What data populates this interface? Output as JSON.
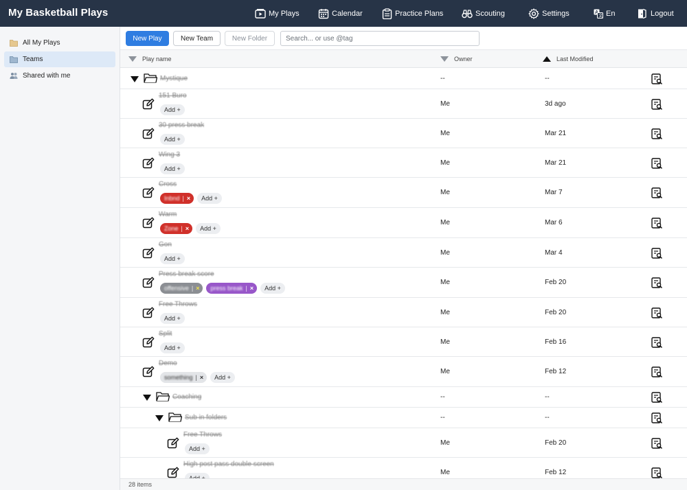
{
  "app": {
    "title": "My Basketball Plays"
  },
  "nav": [
    {
      "id": "my-plays",
      "label": "My Plays",
      "icon": "play-screen-icon"
    },
    {
      "id": "calendar",
      "label": "Calendar",
      "icon": "calendar-icon"
    },
    {
      "id": "practice-plans",
      "label": "Practice Plans",
      "icon": "clipboard-icon"
    },
    {
      "id": "scouting",
      "label": "Scouting",
      "icon": "binoculars-icon"
    },
    {
      "id": "settings",
      "label": "Settings",
      "icon": "gear-icon"
    },
    {
      "id": "language",
      "label": "En",
      "icon": "translate-icon"
    },
    {
      "id": "logout",
      "label": "Logout",
      "icon": "logout-icon"
    }
  ],
  "sidebar": {
    "items": [
      {
        "label": "All My Plays",
        "icon": "folder-icon",
        "active": false
      },
      {
        "label": "Teams",
        "icon": "folder-icon",
        "active": true
      },
      {
        "label": "Shared with me",
        "icon": "people-icon",
        "active": false
      }
    ]
  },
  "toolbar": {
    "new_play": "New Play",
    "new_team": "New Team",
    "new_folder": "New Folder",
    "search_placeholder": "Search... or use @tag"
  },
  "table": {
    "columns": {
      "name": "Play name",
      "owner": "Owner",
      "modified": "Last Modified"
    },
    "rows": [
      {
        "type": "folder",
        "level": 0,
        "name": "Mystique",
        "owner": "--",
        "modified": "--"
      },
      {
        "type": "play",
        "level": 0,
        "name": "151 Buro",
        "owner": "Me",
        "modified": "3d ago",
        "tags": [],
        "add_label": "Add +"
      },
      {
        "type": "play",
        "level": 0,
        "name": "30 press break",
        "owner": "Me",
        "modified": "Mar 21",
        "tags": [],
        "add_label": "Add +"
      },
      {
        "type": "play",
        "level": 0,
        "name": "Wing 3",
        "owner": "Me",
        "modified": "Mar 21",
        "tags": [],
        "add_label": "Add +"
      },
      {
        "type": "play",
        "level": 0,
        "name": "Cross",
        "owner": "Me",
        "modified": "Mar 7",
        "tags": [
          {
            "label": "Inbnd",
            "color": "#d0302a",
            "x": "×"
          }
        ],
        "add_label": "Add +"
      },
      {
        "type": "play",
        "level": 0,
        "name": "Warm",
        "owner": "Me",
        "modified": "Mar 6",
        "tags": [
          {
            "label": "Zone",
            "color": "#d0302a",
            "x": "×"
          }
        ],
        "add_label": "Add +"
      },
      {
        "type": "play",
        "level": 0,
        "name": "Gon",
        "owner": "Me",
        "modified": "Mar 4",
        "tags": [],
        "add_label": "Add +"
      },
      {
        "type": "play",
        "level": 0,
        "name": "Press break score",
        "owner": "Me",
        "modified": "Feb 20",
        "tags": [
          {
            "label": "offensive",
            "color": "#8b8e93",
            "x": "×"
          },
          {
            "label": "press break",
            "color": "#9857c9",
            "x": "×"
          }
        ],
        "add_label": "Add +"
      },
      {
        "type": "play",
        "level": 0,
        "name": "Free Throws",
        "owner": "Me",
        "modified": "Feb 20",
        "tags": [],
        "add_label": "Add +"
      },
      {
        "type": "play",
        "level": 0,
        "name": "Split",
        "owner": "Me",
        "modified": "Feb 16",
        "tags": [],
        "add_label": "Add +"
      },
      {
        "type": "play",
        "level": 0,
        "name": "Demo",
        "owner": "Me",
        "modified": "Feb 12",
        "tags": [
          {
            "label": "something",
            "color": "#e3e5e8",
            "x": "×"
          }
        ],
        "add_label": "Add +"
      },
      {
        "type": "folder",
        "level": 1,
        "name": "Coaching",
        "owner": "--",
        "modified": "--"
      },
      {
        "type": "folder",
        "level": 2,
        "name": "Sub in folders",
        "owner": "--",
        "modified": "--"
      },
      {
        "type": "play",
        "level": 2,
        "name": "Free Throws",
        "owner": "Me",
        "modified": "Feb 20",
        "tags": [],
        "add_label": "Add +"
      },
      {
        "type": "play",
        "level": 2,
        "name": "High post pass double screen",
        "owner": "Me",
        "modified": "Feb 12",
        "tags": [],
        "add_label": "Add +"
      }
    ]
  },
  "footer": {
    "count": "28 items"
  }
}
